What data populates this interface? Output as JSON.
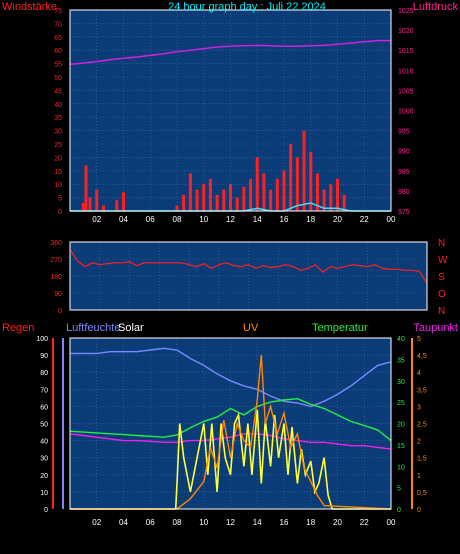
{
  "title": "24 hour graph day : Juli 22 2024",
  "x_ticks": [
    "02",
    "04",
    "06",
    "08",
    "10",
    "12",
    "14",
    "16",
    "18",
    "20",
    "22",
    "00"
  ],
  "colors": {
    "plot_bg": "#0b3c78",
    "grid": "#3d6fb0",
    "wind": "#ff2020",
    "gust": "#33e0ff",
    "pressure": "#cc22dd",
    "direction": "#ff2020",
    "humidity": "#7a88ff",
    "solar": "#ffff33",
    "uv": "#ff8800",
    "temperature": "#22ee44",
    "dewpoint": "#ee22ee",
    "rain": "#ff2020"
  },
  "chart_data": [
    {
      "type": "line",
      "labels": {
        "left": "Windstärke",
        "right": "Luftdruck"
      },
      "left_axis": {
        "ticks": [
          "75",
          "70",
          "65",
          "60",
          "55",
          "50",
          "45",
          "40",
          "35",
          "30",
          "25",
          "20",
          "15",
          "10",
          "5",
          "0"
        ],
        "range": [
          0,
          75
        ]
      },
      "right_axis": {
        "ticks": [
          "1025",
          "1020",
          "1015",
          "1010",
          "1005",
          "1000",
          "995",
          "990",
          "985",
          "980",
          "975"
        ],
        "range": [
          975,
          1025
        ]
      },
      "series": [
        {
          "key": "pressure",
          "axis": "right",
          "x": [
            0,
            1,
            2,
            3,
            4,
            5,
            6,
            7,
            8,
            9,
            10,
            11,
            12,
            13,
            14,
            15,
            16,
            17,
            18,
            19,
            20,
            21,
            22,
            23,
            24
          ],
          "y": [
            1011.5,
            1011.8,
            1012.2,
            1012.6,
            1013.0,
            1013.3,
            1013.7,
            1014.1,
            1014.6,
            1015.0,
            1015.4,
            1015.8,
            1016.0,
            1016.1,
            1016.2,
            1016.1,
            1016.0,
            1016.0,
            1016.1,
            1016.2,
            1016.5,
            1016.8,
            1017.1,
            1017.4,
            1017.4
          ]
        },
        {
          "key": "wind",
          "axis": "left",
          "x": [
            0,
            0.5,
            1,
            1.2,
            1.5,
            2,
            2.5,
            3,
            3.5,
            4,
            5,
            6,
            7,
            8,
            8.5,
            9,
            9.5,
            10,
            10.5,
            11,
            11.5,
            12,
            12.5,
            13,
            13.5,
            14,
            14.5,
            15,
            15.5,
            16,
            16.5,
            17,
            17.5,
            18,
            18.5,
            19,
            19.5,
            20,
            20.5,
            21,
            22,
            23,
            24
          ],
          "y": [
            0,
            0,
            3,
            17,
            5,
            8,
            2,
            0,
            4,
            7,
            0,
            0,
            0,
            2,
            6,
            14,
            8,
            10,
            12,
            6,
            8,
            10,
            5,
            9,
            12,
            20,
            14,
            8,
            12,
            15,
            25,
            20,
            30,
            22,
            14,
            8,
            10,
            12,
            6,
            0,
            0,
            0,
            0
          ]
        },
        {
          "key": "gust",
          "axis": "left",
          "x": [
            0,
            2,
            4,
            6,
            8,
            9,
            10,
            11,
            12,
            13,
            14,
            15,
            16,
            17,
            18,
            19,
            20,
            21,
            22,
            24
          ],
          "y": [
            0,
            0,
            0,
            0,
            0,
            0,
            0,
            0,
            0,
            0,
            1,
            0,
            0,
            2,
            3,
            1,
            1,
            0,
            0,
            0
          ]
        }
      ]
    },
    {
      "type": "scatter",
      "labels": {
        "right": [
          "N",
          "W",
          "S",
          "O",
          "N"
        ]
      },
      "left_axis": {
        "ticks": [
          "360",
          "270",
          "180",
          "90",
          "0"
        ],
        "range": [
          0,
          360
        ]
      },
      "series": [
        {
          "key": "direction",
          "x": [
            0,
            0.5,
            1,
            1.5,
            2,
            2.5,
            3,
            3.5,
            4,
            4.5,
            5,
            5.5,
            6,
            6.5,
            7,
            7.5,
            8,
            8.5,
            9,
            9.5,
            10,
            10.5,
            11,
            11.5,
            12,
            12.5,
            13,
            13.5,
            14,
            14.5,
            15,
            15.5,
            16,
            16.5,
            17,
            17.5,
            18,
            18.5,
            19,
            19.5,
            20,
            20.5,
            21,
            21.5,
            22,
            22.5,
            23,
            23.5,
            24
          ],
          "y": [
            320,
            260,
            230,
            250,
            240,
            245,
            250,
            250,
            255,
            235,
            250,
            250,
            250,
            250,
            250,
            250,
            240,
            230,
            245,
            220,
            240,
            250,
            235,
            230,
            240,
            220,
            235,
            225,
            230,
            240,
            230,
            210,
            220,
            240,
            200,
            230,
            220,
            230,
            240,
            235,
            230,
            240,
            220,
            215,
            215,
            210,
            210,
            205,
            140
          ]
        }
      ]
    },
    {
      "type": "line",
      "labels": {
        "rain": "Regen",
        "humidity": "Luftfeuchte",
        "solar": "Solar",
        "uv": "UV",
        "temperature": "Temperatur",
        "dewpoint": "Taupunkt"
      },
      "left_axis": {
        "ticks": [
          "100",
          "90",
          "80",
          "70",
          "60",
          "50",
          "40",
          "30",
          "20",
          "10",
          "0"
        ],
        "range": [
          0,
          100
        ]
      },
      "right_axis_temp": {
        "ticks": [
          "40",
          "35",
          "30",
          "25",
          "20",
          "15",
          "10",
          "5",
          "0"
        ],
        "range": [
          0,
          40
        ]
      },
      "right_axis_dew": {
        "ticks": [
          "5",
          "4,5",
          "4",
          "3,5",
          "3",
          "2,5",
          "2",
          "1,5",
          "1",
          "0,5",
          "0"
        ],
        "range": [
          0,
          5
        ]
      },
      "series": [
        {
          "key": "humidity",
          "axis": "left",
          "x": [
            0,
            1,
            2,
            3,
            4,
            5,
            6,
            7,
            8,
            9,
            10,
            11,
            12,
            13,
            14,
            15,
            16,
            17,
            18,
            19,
            20,
            21,
            22,
            23,
            24
          ],
          "y": [
            91,
            91,
            91,
            92,
            92,
            92,
            93,
            94,
            93,
            88,
            84,
            79,
            75,
            72,
            70,
            66,
            63,
            62,
            60,
            63,
            67,
            72,
            78,
            84,
            86
          ]
        },
        {
          "key": "temperature",
          "axis": "temp",
          "x": [
            0,
            1,
            2,
            3,
            4,
            5,
            6,
            7,
            8,
            9,
            10,
            11,
            12,
            13,
            14,
            15,
            16,
            17,
            18,
            19,
            20,
            21,
            22,
            23,
            24
          ],
          "y": [
            18.2,
            18.0,
            17.8,
            17.6,
            17.4,
            17.2,
            17.0,
            16.8,
            17.3,
            19.0,
            20.5,
            21.5,
            23.5,
            22.0,
            24.0,
            25.0,
            25.5,
            25.8,
            24.5,
            23.5,
            22.0,
            20.5,
            19.5,
            18.5,
            16.0
          ]
        },
        {
          "key": "dewpoint",
          "axis": "dew",
          "x": [
            0,
            1,
            2,
            3,
            4,
            5,
            6,
            7,
            8,
            9,
            10,
            11,
            12,
            13,
            14,
            15,
            16,
            17,
            18,
            19,
            20,
            21,
            22,
            23,
            24
          ],
          "y": [
            2.2,
            2.15,
            2.1,
            2.05,
            2.0,
            2.0,
            1.98,
            1.95,
            1.95,
            2.0,
            2.0,
            2.05,
            2.1,
            2.2,
            2.2,
            2.15,
            2.05,
            2.0,
            1.95,
            1.95,
            1.9,
            1.85,
            1.85,
            1.8,
            1.75
          ]
        },
        {
          "key": "solar",
          "axis": "left",
          "x": [
            0,
            7.9,
            8.0,
            8.2,
            8.5,
            9,
            9.5,
            10,
            10.3,
            10.6,
            11,
            11.3,
            11.6,
            12,
            12.3,
            12.6,
            13,
            13.3,
            13.6,
            14,
            14.3,
            14.6,
            15,
            15.3,
            15.6,
            16,
            16.3,
            16.6,
            17,
            17.3,
            17.6,
            18,
            18.3,
            18.6,
            19,
            19.3,
            19.6,
            24
          ],
          "y": [
            0,
            0,
            15,
            50,
            30,
            10,
            30,
            50,
            20,
            50,
            10,
            50,
            30,
            20,
            50,
            55,
            25,
            50,
            20,
            58,
            15,
            52,
            25,
            55,
            30,
            50,
            20,
            48,
            15,
            35,
            20,
            28,
            10,
            15,
            30,
            8,
            0,
            0
          ]
        },
        {
          "key": "uv",
          "axis": "dew",
          "x": [
            0,
            8,
            9,
            10,
            10.5,
            11,
            11.5,
            12,
            12.5,
            13,
            13.5,
            14,
            14.3,
            14.6,
            15,
            15.5,
            16,
            16.5,
            17,
            17.5,
            18,
            18.5,
            19,
            24
          ],
          "y": [
            0,
            0,
            0.3,
            0.8,
            1.8,
            1.2,
            2.6,
            1.5,
            2.5,
            2.0,
            1.8,
            3.2,
            4.5,
            2.5,
            3.0,
            2.2,
            2.8,
            1.8,
            2.2,
            1.2,
            0.8,
            0.4,
            0.1,
            0
          ]
        }
      ]
    }
  ]
}
